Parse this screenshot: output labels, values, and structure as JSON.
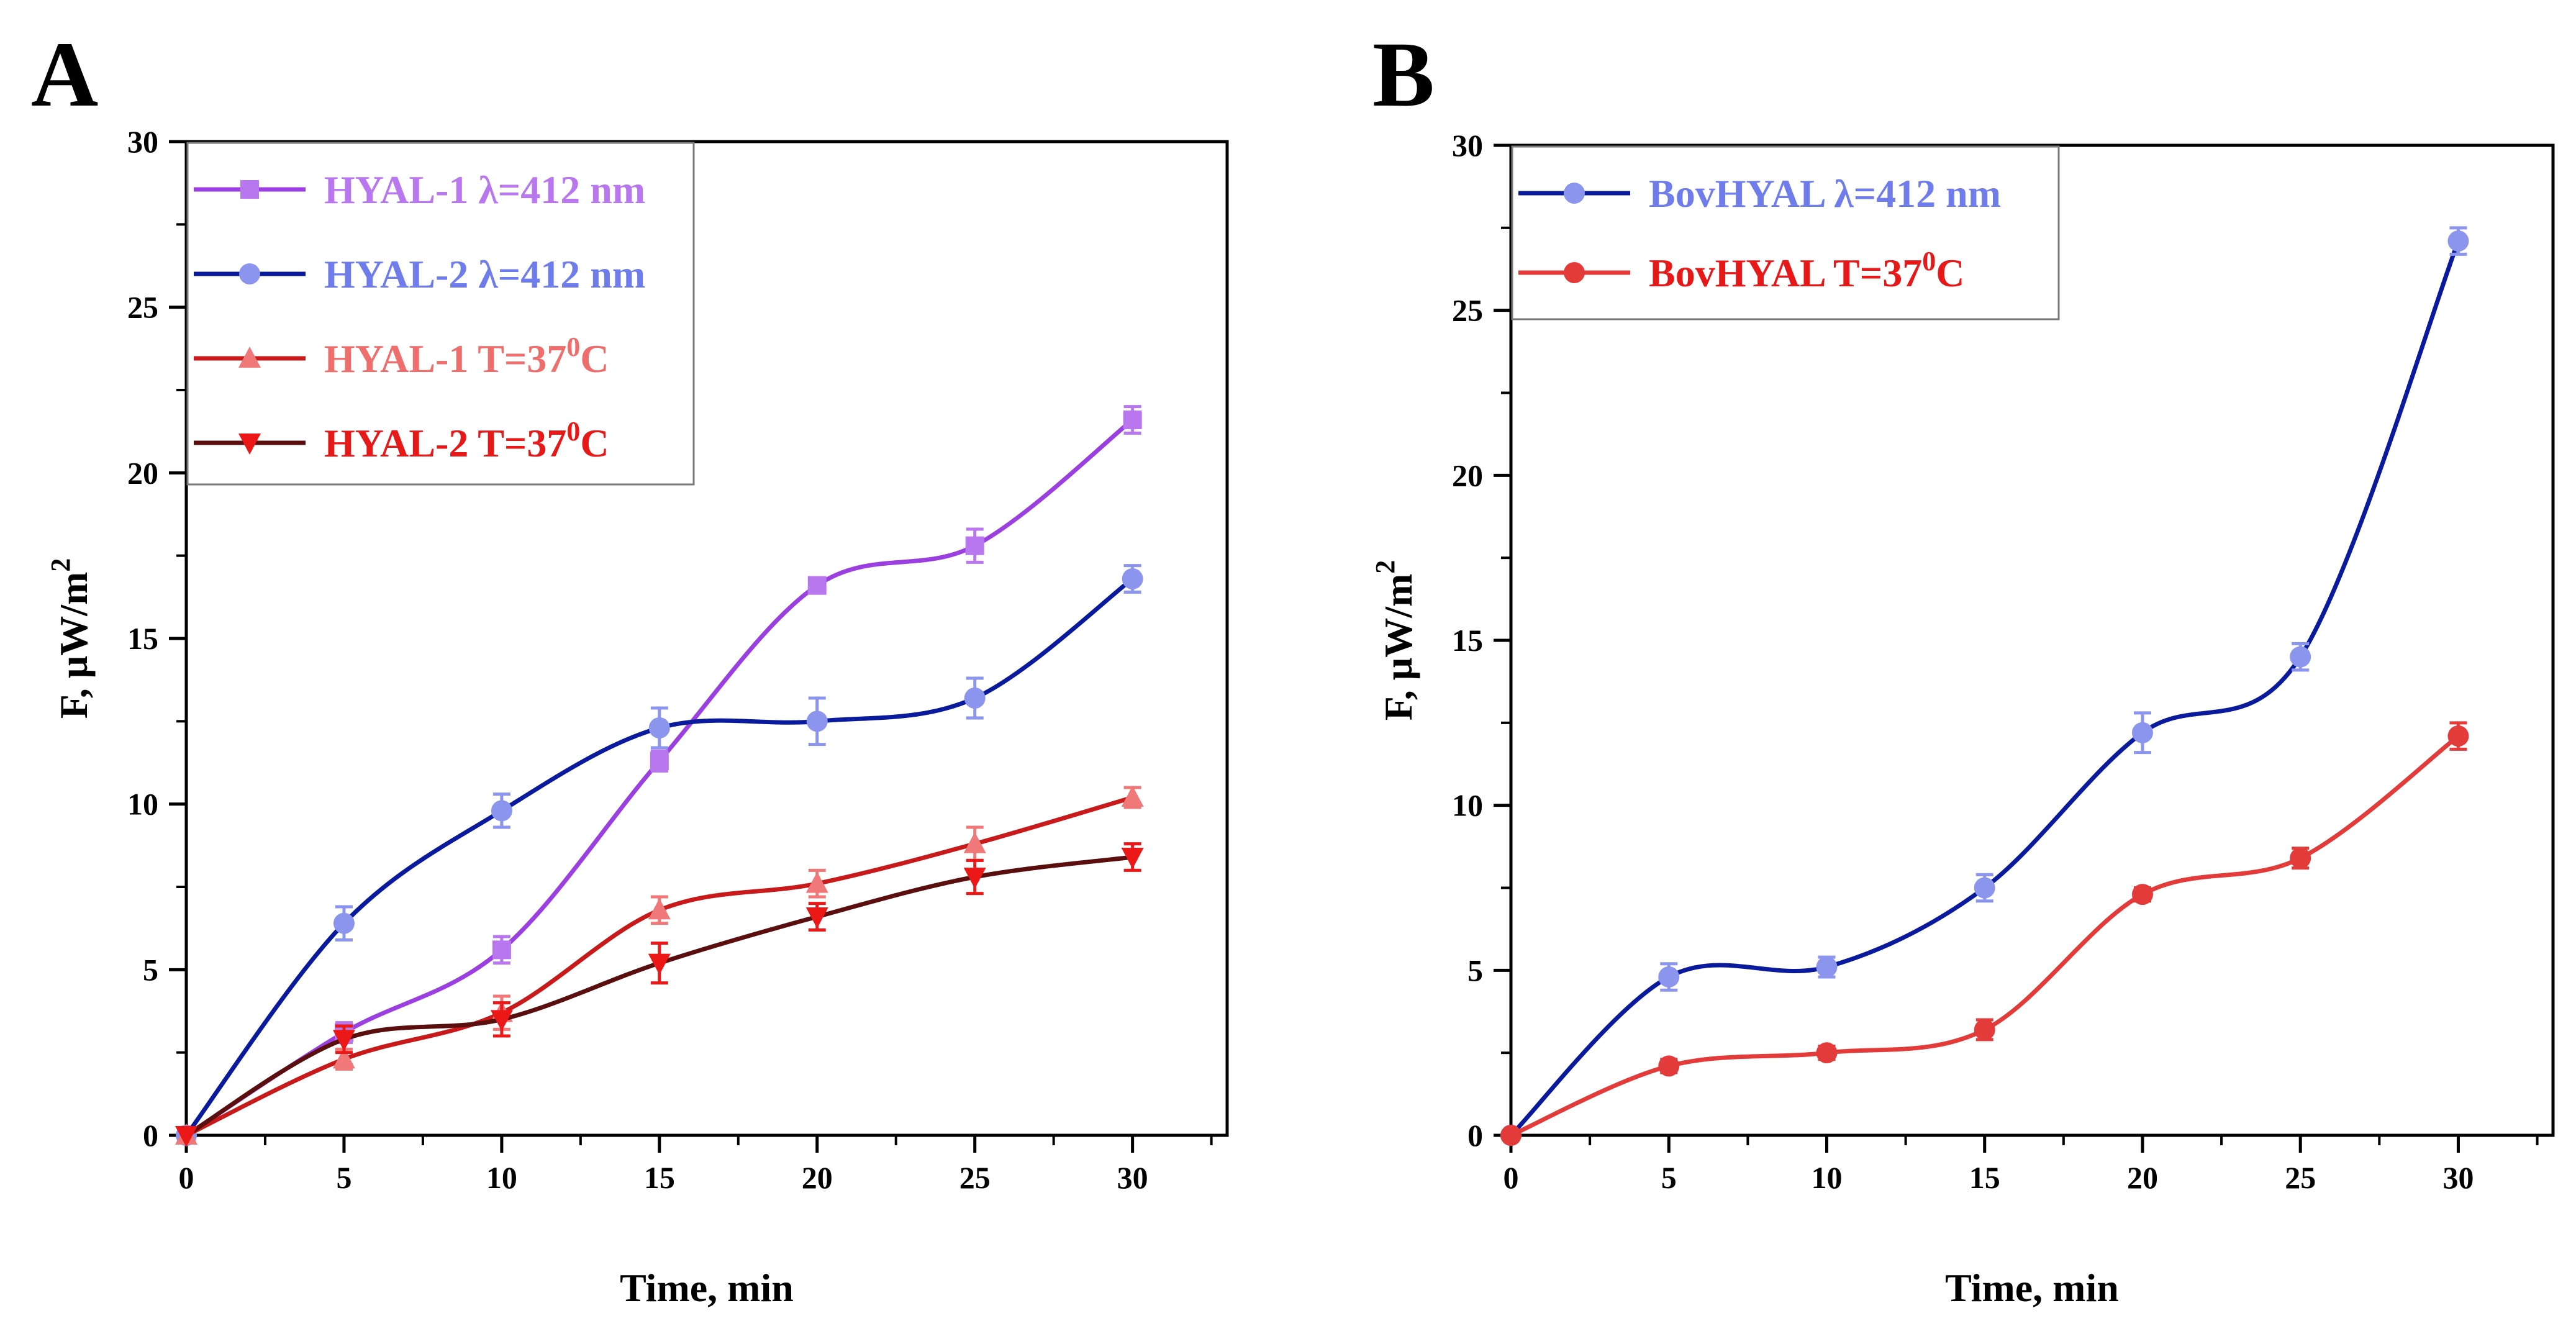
{
  "chart_data": [
    {
      "type": "line",
      "panel_label": "A",
      "xlabel": "Time, min",
      "ylabel_main": "F, μW/m",
      "ylabel_sup": "2",
      "xlim": [
        0,
        33
      ],
      "ylim": [
        0,
        30
      ],
      "xticks": [
        0,
        5,
        10,
        15,
        20,
        25,
        30
      ],
      "yticks": [
        0,
        5,
        10,
        15,
        20,
        25,
        30
      ],
      "x": [
        0,
        5,
        10,
        15,
        20,
        25,
        30
      ],
      "legend_position": "top-left",
      "series": [
        {
          "label_main": "HYAL-1 λ=412 nm",
          "label_sup": "",
          "label_tail": "",
          "marker": "square",
          "line_color": "#9b3fe0",
          "marker_color": "#b877ee",
          "text_color": "#b877ee",
          "values": [
            0,
            3.1,
            5.6,
            11.3,
            16.6,
            17.8,
            21.6
          ],
          "errors": [
            0,
            0.3,
            0.4,
            0.3,
            0.2,
            0.5,
            0.4
          ]
        },
        {
          "label_main": "HYAL-2 λ=412 nm",
          "label_sup": "",
          "label_tail": "",
          "marker": "circle",
          "line_color": "#0a1a9c",
          "marker_color": "#8b95ee",
          "text_color": "#6f7cec",
          "values": [
            0,
            6.4,
            9.8,
            12.3,
            12.5,
            13.2,
            16.8
          ],
          "errors": [
            0,
            0.5,
            0.5,
            0.6,
            0.7,
            0.6,
            0.4
          ]
        },
        {
          "label_main": "HYAL-1 T=37",
          "label_sup": "0",
          "label_tail": "C",
          "marker": "triangle-up",
          "line_color": "#c81a1a",
          "marker_color": "#f07878",
          "text_color": "#ee6d6d",
          "values": [
            0,
            2.3,
            3.7,
            6.8,
            7.6,
            8.8,
            10.2
          ],
          "errors": [
            0,
            0.3,
            0.5,
            0.4,
            0.4,
            0.5,
            0.3
          ]
        },
        {
          "label_main": "HYAL-2 T=37",
          "label_sup": "0",
          "label_tail": "C",
          "marker": "triangle-down",
          "line_color": "#5a0e0e",
          "marker_color": "#ec1818",
          "text_color": "#e61818",
          "values": [
            0,
            2.9,
            3.5,
            5.2,
            6.6,
            7.8,
            8.4
          ],
          "errors": [
            0,
            0.4,
            0.5,
            0.6,
            0.4,
            0.5,
            0.4
          ]
        }
      ]
    },
    {
      "type": "line",
      "panel_label": "B",
      "xlabel": "Time, min",
      "ylabel_main": "F, μW/m",
      "ylabel_sup": "2",
      "xlim": [
        0,
        33
      ],
      "ylim": [
        0,
        30
      ],
      "xticks": [
        0,
        5,
        10,
        15,
        20,
        25,
        30
      ],
      "yticks": [
        0,
        5,
        10,
        15,
        20,
        25,
        30
      ],
      "x": [
        0,
        5,
        10,
        15,
        20,
        25,
        30
      ],
      "legend_position": "top-left",
      "series": [
        {
          "label_main": "BovHYAL λ=412 nm",
          "label_sup": "",
          "label_tail": "",
          "marker": "circle",
          "line_color": "#0a1a9c",
          "marker_color": "#8b95ee",
          "text_color": "#6f7cec",
          "values": [
            0,
            4.8,
            5.1,
            7.5,
            12.2,
            14.5,
            27.1
          ],
          "errors": [
            0,
            0.4,
            0.3,
            0.4,
            0.6,
            0.4,
            0.4
          ]
        },
        {
          "label_main": "BovHYAL T=37",
          "label_sup": "0",
          "label_tail": "C",
          "marker": "circle",
          "line_color": "#e33a3a",
          "marker_color": "#e33a3a",
          "text_color": "#e61818",
          "values": [
            0,
            2.1,
            2.5,
            3.2,
            7.3,
            8.4,
            12.1
          ],
          "errors": [
            0,
            0.2,
            0.2,
            0.3,
            0.2,
            0.3,
            0.4
          ]
        }
      ]
    }
  ]
}
